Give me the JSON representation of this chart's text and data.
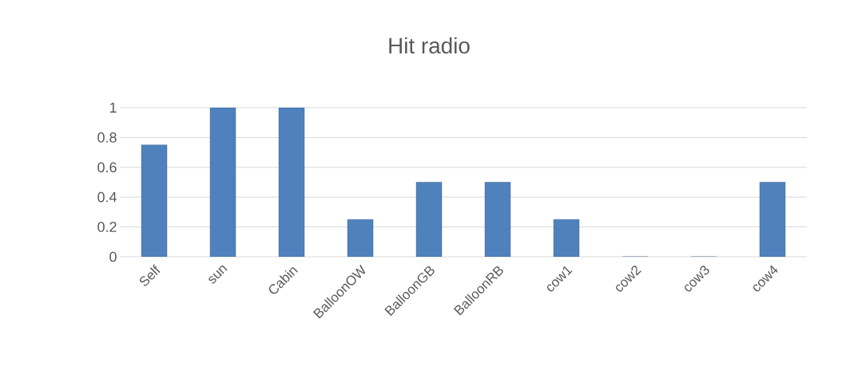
{
  "chart_data": {
    "type": "bar",
    "title": "Hit radio",
    "categories": [
      "Self",
      "sun",
      "Cabin",
      "BalloonOW",
      "BalloonGB",
      "BalloonRB",
      "cow1",
      "cow2",
      "cow3",
      "cow4"
    ],
    "values": [
      0.75,
      1,
      1,
      0.25,
      0.5,
      0.5,
      0.25,
      0,
      0,
      0.5
    ],
    "color": "#4f81bd",
    "ylim": [
      0,
      1
    ],
    "yticks": [
      0,
      0.2,
      0.4,
      0.6,
      0.8,
      1
    ],
    "grid": "y"
  }
}
